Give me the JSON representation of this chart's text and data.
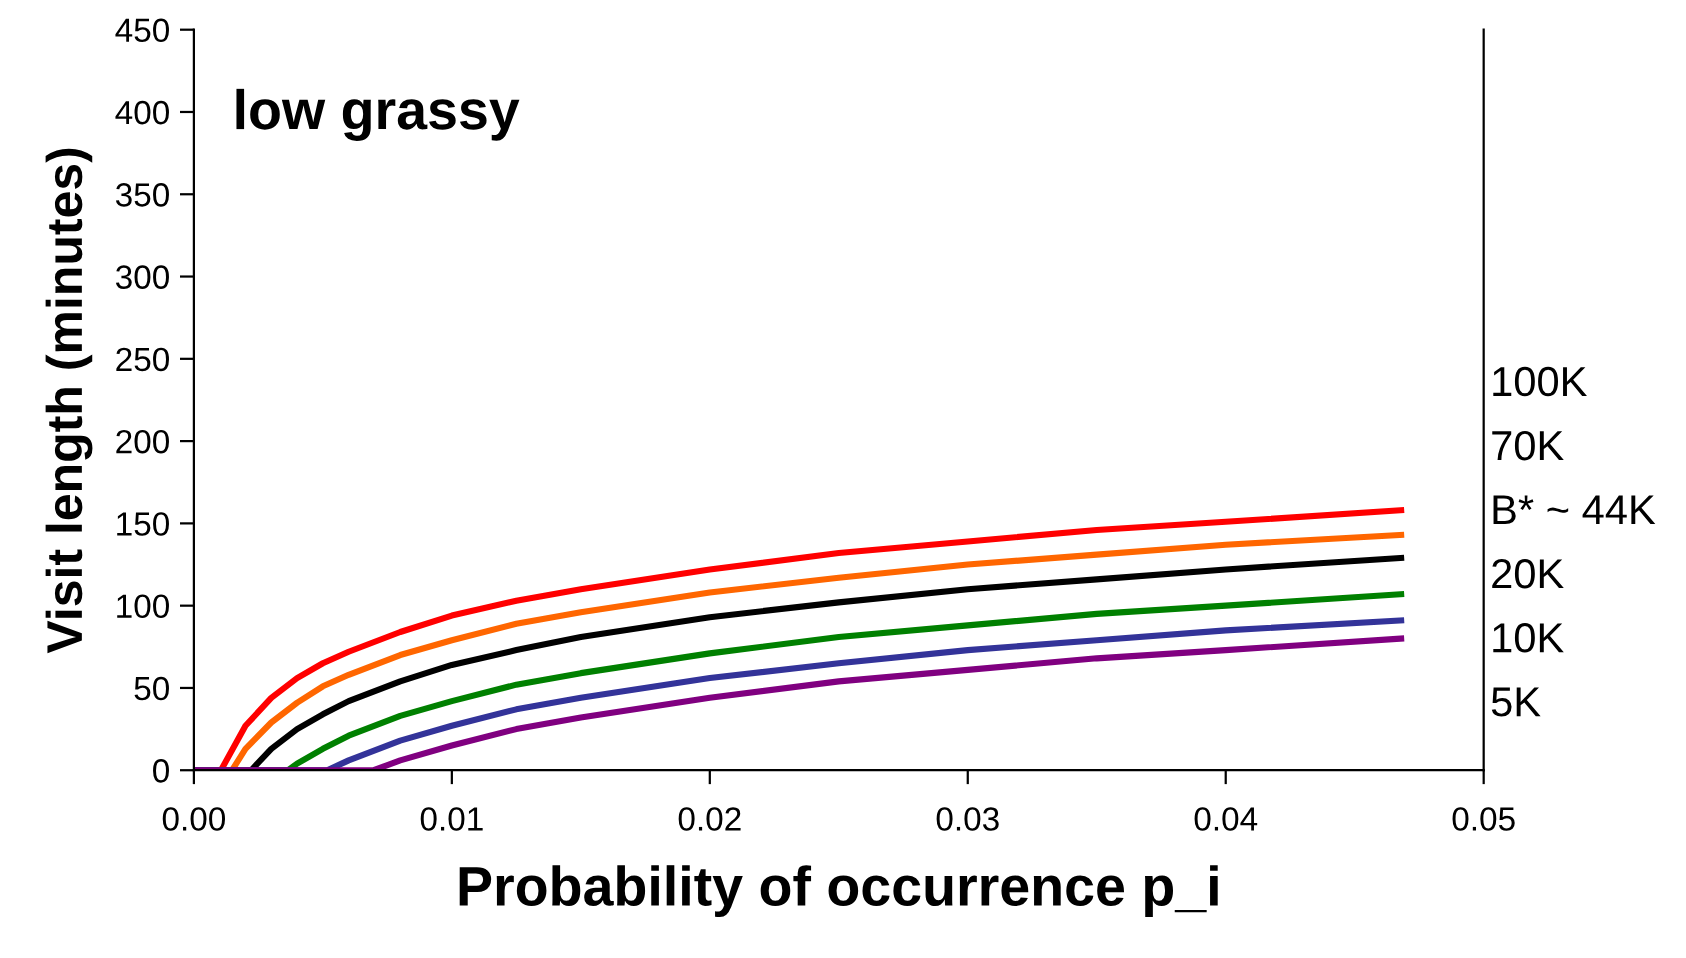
{
  "chart_data": {
    "type": "line",
    "xlabel": "Probability of occurrence p_i",
    "ylabel": "Visit length (minutes)",
    "annotations": [
      "low grassy"
    ],
    "xlim": [
      0,
      0.05
    ],
    "ylim": [
      0,
      450
    ],
    "xticks": [
      {
        "value": 0,
        "label": "0.00"
      },
      {
        "value": 0.01,
        "label": "0.01"
      },
      {
        "value": 0.02,
        "label": "0.02"
      },
      {
        "value": 0.03,
        "label": "0.03"
      },
      {
        "value": 0.04,
        "label": "0.04"
      },
      {
        "value": 0.05,
        "label": "0.05"
      }
    ],
    "yticks": [
      0,
      50,
      100,
      150,
      200,
      250,
      300,
      350,
      400,
      450
    ],
    "grid": false,
    "legend": false,
    "marker": "none",
    "line_style": "solid",
    "series": [
      {
        "name": "100K",
        "color": "#ff0000",
        "x": [
          0,
          0.00105,
          0.002,
          0.003,
          0.004,
          0.005,
          0.006,
          0.008,
          0.01,
          0.0125,
          0.015,
          0.02,
          0.025,
          0.03,
          0.035,
          0.04,
          0.0468
        ],
        "values": [
          0,
          0,
          27,
          44,
          56,
          65,
          72,
          84,
          94,
          103,
          110,
          122,
          132,
          139,
          146,
          151,
          158
        ]
      },
      {
        "name": "70K",
        "color": "#ff6600",
        "x": [
          0,
          0.00148,
          0.002,
          0.003,
          0.004,
          0.005,
          0.006,
          0.008,
          0.01,
          0.0125,
          0.015,
          0.02,
          0.025,
          0.03,
          0.035,
          0.04,
          0.0468
        ],
        "values": [
          0,
          0,
          13,
          29,
          41,
          51,
          58,
          70,
          79,
          89,
          96,
          108,
          117,
          125,
          131,
          137,
          143
        ]
      },
      {
        "name": "B* ~ 44K",
        "color": "#000000",
        "x": [
          0,
          0.00222,
          0.003,
          0.004,
          0.005,
          0.006,
          0.008,
          0.01,
          0.0125,
          0.015,
          0.02,
          0.025,
          0.03,
          0.035,
          0.04,
          0.0468
        ],
        "values": [
          0,
          0,
          13,
          25,
          34,
          42,
          54,
          64,
          73,
          81,
          93,
          102,
          110,
          116,
          122,
          129
        ]
      },
      {
        "name": "20K",
        "color": "#008000",
        "x": [
          0,
          0.00365,
          0.004,
          0.005,
          0.006,
          0.008,
          0.01,
          0.0125,
          0.015,
          0.02,
          0.025,
          0.03,
          0.035,
          0.04,
          0.0468
        ],
        "values": [
          0,
          0,
          4,
          13,
          21,
          33,
          42,
          52,
          59,
          71,
          81,
          88,
          95,
          100,
          107
        ]
      },
      {
        "name": "10K",
        "color": "#333399",
        "x": [
          0,
          0.00517,
          0.006,
          0.008,
          0.01,
          0.0125,
          0.015,
          0.02,
          0.025,
          0.03,
          0.035,
          0.04,
          0.0468
        ],
        "values": [
          0,
          0,
          6,
          18,
          27,
          37,
          44,
          56,
          65,
          73,
          79,
          85,
          91
        ]
      },
      {
        "name": "5K",
        "color": "#800080",
        "x": [
          0,
          0.00697,
          0.008,
          0.01,
          0.0125,
          0.015,
          0.02,
          0.025,
          0.03,
          0.035,
          0.04,
          0.0468
        ],
        "values": [
          0,
          0,
          6,
          15,
          25,
          32,
          44,
          54,
          61,
          68,
          73,
          80
        ]
      }
    ]
  }
}
